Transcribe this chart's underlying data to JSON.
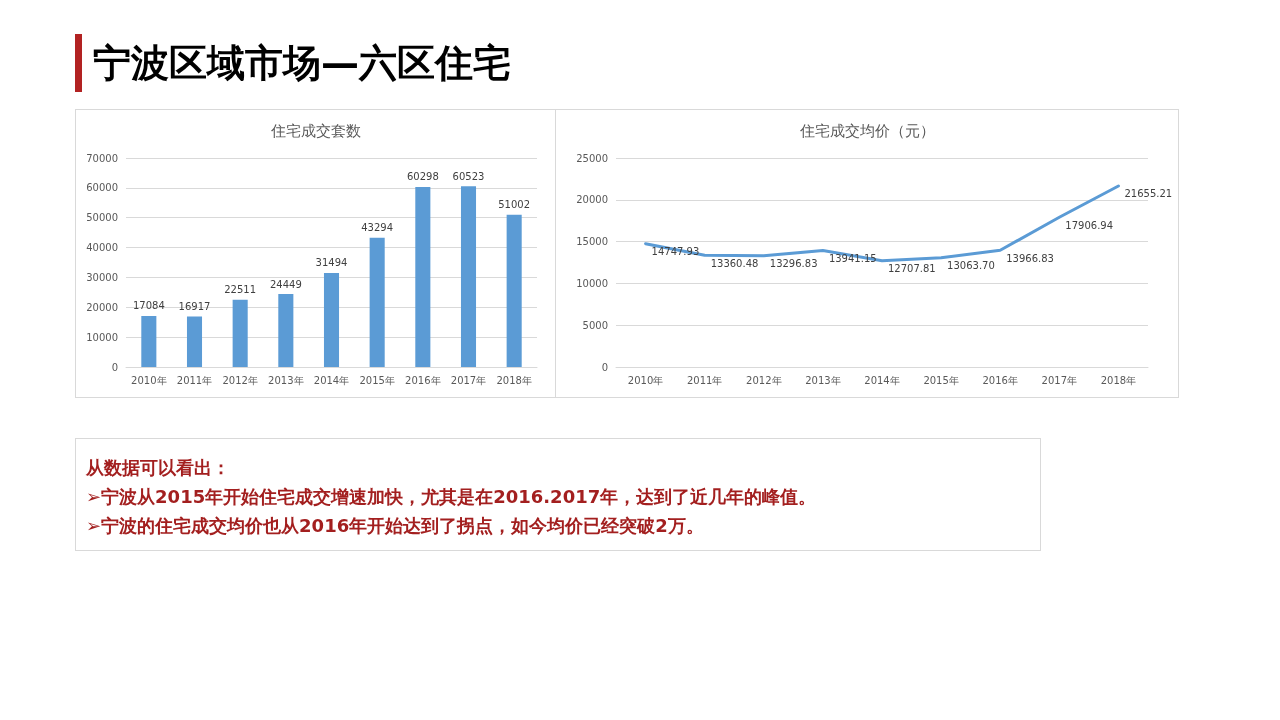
{
  "chart_data": [
    {
      "type": "other",
      "title": "宁波区域市场—六区住宅"
    },
    {
      "type": "bar",
      "title": "住宅成交套数",
      "categories": [
        "2010年",
        "2011年",
        "2012年",
        "2013年",
        "2014年",
        "2015年",
        "2016年",
        "2017年",
        "2018年"
      ],
      "values": [
        17084,
        16917,
        22511,
        24449,
        31494,
        43294,
        60298,
        60523,
        51002
      ],
      "color": "#5b9bd5",
      "ylim": [
        0,
        70000
      ],
      "yticks": [
        0,
        10000,
        20000,
        30000,
        40000,
        50000,
        60000,
        70000
      ],
      "grid": "y",
      "data_labels": true
    },
    {
      "type": "line",
      "title": "住宅成交均价（元）",
      "categories": [
        "2010年",
        "2011年",
        "2012年",
        "2013年",
        "2014年",
        "2015年",
        "2016年",
        "2017年",
        "2018年"
      ],
      "value_labels": [
        "14747.93",
        "13360.48",
        "13296.83",
        "13941.15",
        "12707.81",
        "13063.70",
        "13966.83",
        "17906.94",
        "21655.21"
      ],
      "values": [
        14747.93,
        13360.48,
        13296.83,
        13941.15,
        12707.81,
        13063.7,
        13966.83,
        17906.94,
        21655.21
      ],
      "color": "#5b9bd5",
      "ylim": [
        0,
        25000
      ],
      "yticks": [
        0,
        5000,
        10000,
        15000,
        20000,
        25000
      ],
      "grid": "y",
      "marker": "none",
      "line_style": "solid"
    },
    {
      "type": "other",
      "annotations": [
        "从数据可以看出：",
        "➢宁波从2015年开始住宅成交增速加快，尤其是在2016.2017年，达到了近几年的峰值。",
        "➢宁波的住宅成交均价也从2016年开始达到了拐点，如今均价已经突破2万。"
      ]
    }
  ]
}
